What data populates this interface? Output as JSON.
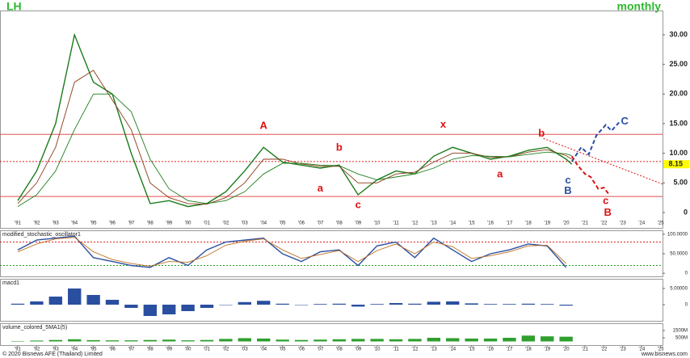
{
  "header": {
    "symbol": "LH",
    "period": "monthly"
  },
  "chart_data": [
    {
      "type": "line",
      "panel": "price",
      "x": [
        1991,
        1992,
        1993,
        1994,
        1995,
        1996,
        1997,
        1998,
        1999,
        2000,
        2001,
        2002,
        2003,
        2004,
        2005,
        2006,
        2007,
        2008,
        2009,
        2010,
        2011,
        2012,
        2013,
        2014,
        2015,
        2016,
        2017,
        2018,
        2019,
        2020,
        2020.3
      ],
      "series": [
        {
          "color": "#1a7a1a",
          "values": [
            2,
            7,
            15,
            30,
            22,
            20,
            10,
            1.5,
            2,
            1,
            1.5,
            3.5,
            7,
            11,
            8.5,
            8,
            7.5,
            8,
            3,
            5.5,
            7,
            6.5,
            9.5,
            11,
            10,
            9,
            9.5,
            10.5,
            11,
            9,
            8.15
          ]
        },
        {
          "color": "#8b3a1a",
          "values": [
            1.5,
            5,
            11,
            22,
            24,
            19,
            14,
            5,
            2.5,
            1.5,
            1.4,
            2.5,
            5,
            9,
            9,
            8.2,
            7.8,
            7.8,
            5,
            5,
            6.5,
            6.8,
            8.5,
            10,
            10,
            9.3,
            9.4,
            10.2,
            10.6,
            9.6,
            9
          ]
        },
        {
          "color": "#1f7f1f",
          "values": [
            1,
            3,
            7,
            14,
            20,
            20,
            17,
            9,
            4,
            2,
            1.5,
            2,
            3.5,
            6.5,
            8.3,
            8.3,
            8,
            7.9,
            6.5,
            5.5,
            6,
            6.5,
            7.5,
            9,
            9.6,
            9.5,
            9.4,
            9.8,
            10.2,
            9.9,
            9.6
          ]
        }
      ],
      "xlim": [
        1990.06,
        2025.1
      ],
      "xticks": [
        {
          "value": 1991,
          "label": "'91"
        },
        {
          "value": 1992,
          "label": "'92"
        },
        {
          "value": 1993,
          "label": "'93"
        },
        {
          "value": 1994,
          "label": "'94"
        },
        {
          "value": 1995,
          "label": "'95"
        },
        {
          "value": 1996,
          "label": "'96"
        },
        {
          "value": 1997,
          "label": "'97"
        },
        {
          "value": 1998,
          "label": "'98"
        },
        {
          "value": 1999,
          "label": "'99"
        },
        {
          "value": 2000,
          "label": "'00"
        },
        {
          "value": 2001,
          "label": "'01"
        },
        {
          "value": 2002,
          "label": "'02"
        },
        {
          "value": 2003,
          "label": "'03"
        },
        {
          "value": 2004,
          "label": "'04"
        },
        {
          "value": 2005,
          "label": "'05"
        },
        {
          "value": 2006,
          "label": "'06"
        },
        {
          "value": 2007,
          "label": "'07"
        },
        {
          "value": 2008,
          "label": "'08"
        },
        {
          "value": 2009,
          "label": "'09"
        },
        {
          "value": 2010,
          "label": "'10"
        },
        {
          "value": 2011,
          "label": "'11"
        },
        {
          "value": 2012,
          "label": "'12"
        },
        {
          "value": 2013,
          "label": "'13"
        },
        {
          "value": 2014,
          "label": "'14"
        },
        {
          "value": 2015,
          "label": "'15"
        },
        {
          "value": 2016,
          "label": "'16"
        },
        {
          "value": 2017,
          "label": "'17"
        },
        {
          "value": 2018,
          "label": "'18"
        },
        {
          "value": 2019,
          "label": "'19"
        },
        {
          "value": 2020,
          "label": "'20"
        },
        {
          "value": 2021,
          "label": "'21"
        },
        {
          "value": 2022,
          "label": "'22"
        },
        {
          "value": 2023,
          "label": "'23"
        },
        {
          "value": 2024,
          "label": "'24"
        },
        {
          "value": 2025,
          "label": "'25"
        }
      ],
      "ylim": [
        -2.6,
        34.1
      ],
      "yticks": [
        0,
        {
          "value": 5,
          "label": "5.00"
        },
        {
          "value": 10,
          "label": "10.00"
        },
        {
          "value": 15,
          "label": "15.00"
        },
        {
          "value": 20,
          "label": "20.00"
        },
        {
          "value": 25,
          "label": "25.00"
        },
        {
          "value": 30,
          "label": "30.00"
        }
      ],
      "last_price": 8.15,
      "levels": [
        {
          "value": 13.2,
          "color": "#e05050",
          "style": "solid"
        },
        {
          "value": 2.7,
          "color": "#e05050",
          "style": "solid"
        },
        {
          "value": 8.6,
          "color": "#e02020",
          "style": "dotted"
        }
      ],
      "projections": [
        {
          "color": "#2a4fa0",
          "style": "dashed",
          "x": [
            2020.3,
            2020.8,
            2021.2,
            2021.6,
            2022.1,
            2022.4,
            2022.8
          ],
          "y": [
            8.6,
            11,
            9.8,
            13,
            14.8,
            13.8,
            15.2
          ]
        },
        {
          "color": "#e01010",
          "style": "dashed",
          "x": [
            2020.3,
            2020.6,
            2021.0,
            2021.3,
            2021.7,
            2022.0,
            2022.3
          ],
          "y": [
            9.5,
            8,
            6.5,
            6,
            4,
            4.2,
            2.9
          ]
        },
        {
          "color": "#e01010",
          "style": "dotted",
          "x": [
            2018.8,
            2025.1
          ],
          "y": [
            12.5,
            4.8
          ]
        }
      ],
      "annotations": [
        {
          "text": "A",
          "x": 2004,
          "y": 14.6,
          "color": "#e01010"
        },
        {
          "text": "b",
          "x": 2008,
          "y": 10.9,
          "color": "#e01010"
        },
        {
          "text": "a",
          "x": 2007,
          "y": 4,
          "color": "#e01010"
        },
        {
          "text": "c",
          "x": 2009,
          "y": 1.2,
          "color": "#e01010"
        },
        {
          "text": "x",
          "x": 2013.5,
          "y": 14.8,
          "color": "#e01010"
        },
        {
          "text": "a",
          "x": 2016.5,
          "y": 6.4,
          "color": "#e01010"
        },
        {
          "text": "b",
          "x": 2018.7,
          "y": 13.3,
          "color": "#e01010"
        },
        {
          "text": "c",
          "x": 2020.1,
          "y": 5.4,
          "color": "#2a4fa0"
        },
        {
          "text": "B",
          "x": 2020.1,
          "y": 3.6,
          "color": "#2a4fa0"
        },
        {
          "text": "c",
          "x": 2022.1,
          "y": 1.9,
          "color": "#e01010"
        },
        {
          "text": "B",
          "x": 2022.2,
          "y": -0.1,
          "color": "#e01010"
        },
        {
          "text": "C",
          "x": 2023.1,
          "y": 15.3,
          "color": "#2a4fa0"
        }
      ]
    },
    {
      "type": "line",
      "panel": "oscillator",
      "title": "modified_stochastic_oscillator1",
      "x": [
        1991,
        1992,
        1993,
        1994,
        1995,
        1996,
        1997,
        1998,
        1999,
        2000,
        2001,
        2002,
        2003,
        2004,
        2005,
        2006,
        2007,
        2008,
        2009,
        2010,
        2011,
        2012,
        2013,
        2014,
        2015,
        2016,
        2017,
        2018,
        2019,
        2020
      ],
      "series": [
        {
          "color": "#2a4fa0",
          "values": [
            60,
            85,
            90,
            95,
            40,
            30,
            20,
            15,
            40,
            20,
            60,
            80,
            85,
            90,
            50,
            30,
            55,
            60,
            20,
            70,
            80,
            40,
            90,
            60,
            30,
            50,
            60,
            75,
            70,
            15
          ]
        },
        {
          "color": "#c07020",
          "values": [
            55,
            75,
            88,
            92,
            55,
            35,
            25,
            18,
            30,
            28,
            45,
            72,
            82,
            88,
            60,
            38,
            48,
            58,
            30,
            58,
            75,
            50,
            80,
            68,
            38,
            45,
            55,
            70,
            72,
            25
          ]
        }
      ],
      "xlim": [
        1990.06,
        2025.1
      ],
      "ylim": [
        -8,
        110
      ],
      "yticks": [
        0,
        {
          "value": 50,
          "label": "50.0000"
        },
        {
          "value": 100,
          "label": "100.0000"
        }
      ],
      "levels": [
        {
          "value": 80,
          "color": "#e02020",
          "style": "dotted"
        },
        {
          "value": 20,
          "color": "#20a020",
          "style": "dotted"
        }
      ]
    },
    {
      "type": "bar",
      "panel": "macd",
      "title": "macd1",
      "x": [
        1991,
        1992,
        1993,
        1994,
        1995,
        1996,
        1997,
        1998,
        1999,
        2000,
        2001,
        2002,
        2003,
        2004,
        2005,
        2006,
        2007,
        2008,
        2009,
        2010,
        2011,
        2012,
        2013,
        2014,
        2015,
        2016,
        2017,
        2018,
        2019,
        2020
      ],
      "values": [
        0.3,
        1,
        2.5,
        5,
        3,
        1.5,
        -1,
        -3.5,
        -3,
        -2,
        -1,
        0,
        0.8,
        1.2,
        0.3,
        0,
        0.2,
        0.3,
        -0.6,
        0.2,
        0.5,
        0.3,
        0.9,
        1,
        0.4,
        0.2,
        0.2,
        0.3,
        0.2,
        -0.3
      ],
      "color": "#2a4fa0",
      "xlim": [
        1990.06,
        2025.1
      ],
      "ylim": [
        -5,
        8
      ],
      "yticks": [
        0,
        {
          "value": 5,
          "label": "5.00000"
        }
      ]
    },
    {
      "type": "bar",
      "panel": "volume",
      "title": "volume_colored_5MA1(5)",
      "x": [
        1991,
        1992,
        1993,
        1994,
        1995,
        1996,
        1997,
        1998,
        1999,
        2000,
        2001,
        2002,
        2003,
        2004,
        2005,
        2006,
        2007,
        2008,
        2009,
        2010,
        2011,
        2012,
        2013,
        2014,
        2015,
        2016,
        2017,
        2018,
        2019,
        2020
      ],
      "values": [
        60,
        120,
        200,
        300,
        180,
        150,
        150,
        200,
        250,
        150,
        200,
        350,
        450,
        400,
        250,
        200,
        250,
        300,
        350,
        350,
        300,
        350,
        500,
        450,
        400,
        400,
        500,
        800,
        700,
        650
      ],
      "color": "#2f9f2f",
      "xlim": [
        1990.06,
        2025.1
      ],
      "ylim": [
        -500,
        2500
      ],
      "yticks": [
        {
          "value": 500,
          "label": "500M"
        },
        {
          "value": 1500,
          "label": "1500M"
        }
      ]
    }
  ],
  "footer": {
    "copyright": "© 2020 Bisnews AFE (Thailand) Limited",
    "site": "www.bisnews.com"
  }
}
